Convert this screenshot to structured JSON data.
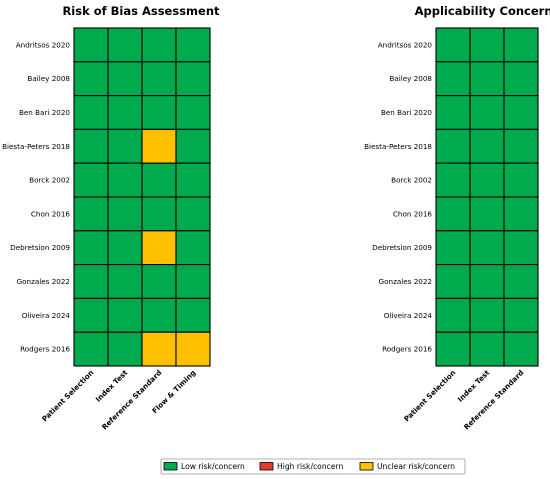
{
  "chart_data": [
    {
      "type": "heatmap",
      "title": "Risk of Bias Assessment",
      "studies": [
        "Andritsos 2020",
        "Bailey 2008",
        "Ben Bari 2020",
        "Biesta-Peters 2018",
        "Borck 2002",
        "Chon 2016",
        "Debretsion 2009",
        "Gonzales 2022",
        "Oliveira 2024",
        "Rodgers 2016"
      ],
      "domains": [
        "Patient Selection",
        "Index Test",
        "Reference Standard",
        "Flow & Timing"
      ],
      "values": [
        [
          "low",
          "low",
          "low",
          "low"
        ],
        [
          "low",
          "low",
          "low",
          "low"
        ],
        [
          "low",
          "low",
          "low",
          "low"
        ],
        [
          "low",
          "low",
          "unclear",
          "low"
        ],
        [
          "low",
          "low",
          "low",
          "low"
        ],
        [
          "low",
          "low",
          "low",
          "low"
        ],
        [
          "low",
          "low",
          "unclear",
          "low"
        ],
        [
          "low",
          "low",
          "low",
          "low"
        ],
        [
          "low",
          "low",
          "low",
          "low"
        ],
        [
          "low",
          "low",
          "unclear",
          "unclear"
        ]
      ]
    },
    {
      "type": "heatmap",
      "title": "Applicability Concerns",
      "studies": [
        "Andritsos 2020",
        "Bailey 2008",
        "Ben Bari 2020",
        "Biesta-Peters 2018",
        "Borck 2002",
        "Chon 2016",
        "Debretsion 2009",
        "Gonzales 2022",
        "Oliveira 2024",
        "Rodgers 2016"
      ],
      "domains": [
        "Patient Selection",
        "Index Test",
        "Reference Standard"
      ],
      "values": [
        [
          "low",
          "low",
          "low"
        ],
        [
          "low",
          "low",
          "low"
        ],
        [
          "low",
          "low",
          "low"
        ],
        [
          "low",
          "low",
          "low"
        ],
        [
          "low",
          "low",
          "low"
        ],
        [
          "low",
          "low",
          "low"
        ],
        [
          "low",
          "low",
          "low"
        ],
        [
          "low",
          "low",
          "low"
        ],
        [
          "low",
          "low",
          "low"
        ],
        [
          "low",
          "low",
          "low"
        ]
      ]
    }
  ],
  "legend": [
    {
      "key": "low",
      "label": "Low risk/concern",
      "color": "#00ab4e"
    },
    {
      "key": "high",
      "label": "High risk/concern",
      "color": "#e03c31"
    },
    {
      "key": "unclear",
      "label": "Unclear risk/concern",
      "color": "#ffc000"
    }
  ]
}
